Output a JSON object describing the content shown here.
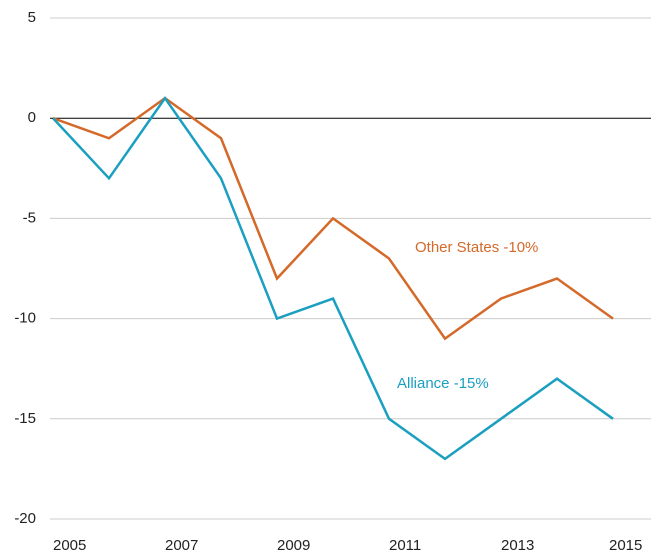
{
  "chart_data": {
    "type": "line",
    "x": [
      2005,
      2006,
      2007,
      2008,
      2009,
      2010,
      2011,
      2012,
      2013,
      2014,
      2015
    ],
    "series": [
      {
        "name": "Other States -10%",
        "color": "#d4692a",
        "values": [
          0,
          -1,
          1,
          -1,
          -8,
          -5,
          -7,
          -11,
          -9,
          -8,
          -10
        ]
      },
      {
        "name": "Alliance -15%",
        "color": "#1a9fc0",
        "values": [
          0,
          -3,
          1,
          -3,
          -10,
          -9,
          -15,
          -17,
          -15,
          -13,
          -15
        ]
      }
    ],
    "xlim": [
      2005,
      2015
    ],
    "xticks": [
      2005,
      2007,
      2009,
      2011,
      2013,
      2015
    ],
    "ylim": [
      -20,
      5
    ],
    "yticks": [
      5,
      0,
      -5,
      -10,
      -15,
      -20
    ],
    "grid": true
  }
}
